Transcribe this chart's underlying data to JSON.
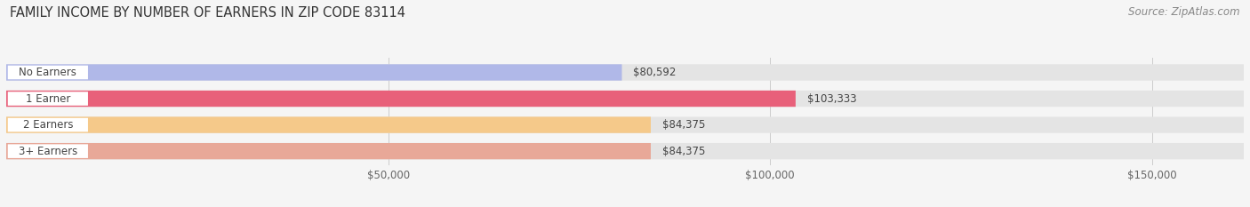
{
  "title": "FAMILY INCOME BY NUMBER OF EARNERS IN ZIP CODE 83114",
  "source": "Source: ZipAtlas.com",
  "categories": [
    "No Earners",
    "1 Earner",
    "2 Earners",
    "3+ Earners"
  ],
  "values": [
    80592,
    103333,
    84375,
    84375
  ],
  "bar_colors": [
    "#b0b8e8",
    "#e8607a",
    "#f5c98a",
    "#e8a898"
  ],
  "bar_labels": [
    "$80,592",
    "$103,333",
    "$84,375",
    "$84,375"
  ],
  "xlim": [
    0,
    162000
  ],
  "xticks": [
    50000,
    100000,
    150000
  ],
  "xticklabels": [
    "$50,000",
    "$100,000",
    "$150,000"
  ],
  "background_color": "#f5f5f5",
  "bar_bg_color": "#e4e4e4",
  "bar_height": 0.62,
  "title_fontsize": 10.5,
  "source_fontsize": 8.5,
  "label_fontsize": 8.5,
  "category_fontsize": 8.5,
  "tick_fontsize": 8.5
}
